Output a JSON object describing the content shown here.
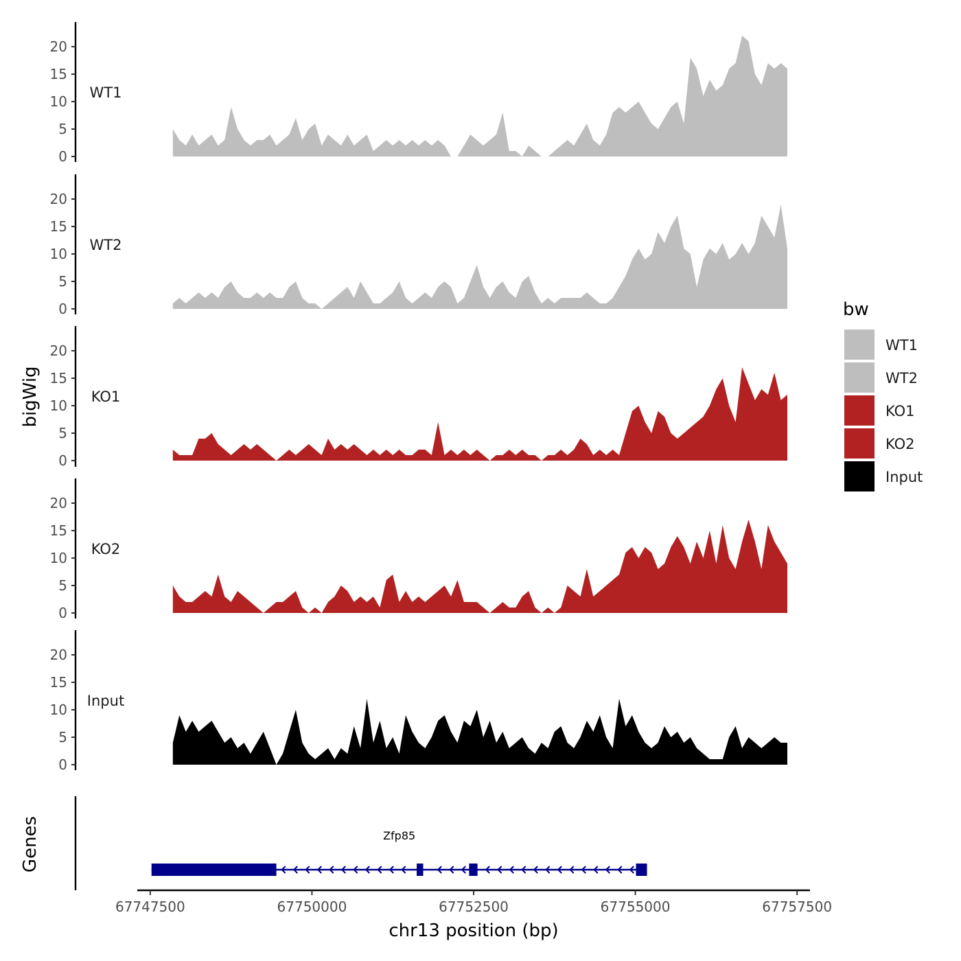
{
  "chart_data": {
    "type": "area",
    "x_label": "chr13 position (bp)",
    "x_range": [
      67747300,
      67757700
    ],
    "x_ticks": [
      67747500,
      67750000,
      67752500,
      67755000,
      67757500
    ],
    "x_tick_labels": [
      "67747500",
      "67750000",
      "67752500",
      "67755000",
      "67757500"
    ],
    "y_label": "bigWig",
    "y_range": [
      0,
      24.5
    ],
    "y_ticks": [
      0,
      5,
      10,
      15,
      20
    ],
    "y_tick_labels": [
      "0",
      "5",
      "10",
      "15",
      "20"
    ],
    "legend": {
      "title": "bw",
      "position": "right",
      "entries": [
        {
          "label": "WT1",
          "color": "#bebebe"
        },
        {
          "label": "WT2",
          "color": "#bebebe"
        },
        {
          "label": "KO1",
          "color": "#b22222"
        },
        {
          "label": "KO2",
          "color": "#b22222"
        },
        {
          "label": "Input",
          "color": "#000000"
        }
      ]
    },
    "series": [
      {
        "name": "WT1",
        "color": "#bebebe",
        "x": [
          67747850,
          67747950,
          67748050,
          67748150,
          67748250,
          67748350,
          67748450,
          67748550,
          67748650,
          67748750,
          67748850,
          67748950,
          67749050,
          67749150,
          67749250,
          67749350,
          67749450,
          67749550,
          67749650,
          67749750,
          67749850,
          67749950,
          67750050,
          67750150,
          67750250,
          67750350,
          67750450,
          67750550,
          67750650,
          67750750,
          67750850,
          67750950,
          67751050,
          67751150,
          67751250,
          67751350,
          67751450,
          67751550,
          67751650,
          67751750,
          67751850,
          67751950,
          67752050,
          67752150,
          67752250,
          67752350,
          67752450,
          67752550,
          67752650,
          67752750,
          67752850,
          67752950,
          67753050,
          67753150,
          67753250,
          67753350,
          67753450,
          67753550,
          67753650,
          67753750,
          67753850,
          67753950,
          67754050,
          67754150,
          67754250,
          67754350,
          67754450,
          67754550,
          67754650,
          67754750,
          67754850,
          67754950,
          67755050,
          67755150,
          67755250,
          67755350,
          67755450,
          67755550,
          67755650,
          67755750,
          67755850,
          67755950,
          67756050,
          67756150,
          67756250,
          67756350,
          67756450,
          67756550,
          67756650,
          67756750,
          67756850,
          67756950,
          67757050,
          67757150,
          67757250,
          67757350
        ],
        "values": [
          5,
          3,
          2,
          4,
          2,
          3,
          4,
          2,
          3,
          9,
          5,
          3,
          2,
          3,
          3,
          4,
          2,
          3,
          4,
          7,
          3,
          5,
          6,
          2,
          4,
          3,
          2,
          4,
          2,
          3,
          4,
          1,
          2,
          3,
          2,
          3,
          2,
          3,
          2,
          3,
          2,
          3,
          2,
          0,
          0,
          2,
          4,
          3,
          2,
          3,
          4,
          8,
          1,
          1,
          0,
          2,
          1,
          0,
          0,
          1,
          2,
          3,
          2,
          4,
          6,
          3,
          2,
          4,
          8,
          9,
          8,
          9,
          10,
          8,
          6,
          5,
          7,
          9,
          10,
          6,
          18,
          16,
          11,
          14,
          12,
          13,
          16,
          17,
          22,
          21,
          15,
          13,
          17,
          16,
          17,
          16
        ]
      },
      {
        "name": "WT2",
        "color": "#bebebe",
        "x": [
          67747850,
          67747950,
          67748050,
          67748150,
          67748250,
          67748350,
          67748450,
          67748550,
          67748650,
          67748750,
          67748850,
          67748950,
          67749050,
          67749150,
          67749250,
          67749350,
          67749450,
          67749550,
          67749650,
          67749750,
          67749850,
          67749950,
          67750050,
          67750150,
          67750250,
          67750350,
          67750450,
          67750550,
          67750650,
          67750750,
          67750850,
          67750950,
          67751050,
          67751150,
          67751250,
          67751350,
          67751450,
          67751550,
          67751650,
          67751750,
          67751850,
          67751950,
          67752050,
          67752150,
          67752250,
          67752350,
          67752450,
          67752550,
          67752650,
          67752750,
          67752850,
          67752950,
          67753050,
          67753150,
          67753250,
          67753350,
          67753450,
          67753550,
          67753650,
          67753750,
          67753850,
          67753950,
          67754050,
          67754150,
          67754250,
          67754350,
          67754450,
          67754550,
          67754650,
          67754750,
          67754850,
          67754950,
          67755050,
          67755150,
          67755250,
          67755350,
          67755450,
          67755550,
          67755650,
          67755750,
          67755850,
          67755950,
          67756050,
          67756150,
          67756250,
          67756350,
          67756450,
          67756550,
          67756650,
          67756750,
          67756850,
          67756950,
          67757050,
          67757150,
          67757250,
          67757350
        ],
        "values": [
          1,
          2,
          1,
          2,
          3,
          2,
          3,
          2,
          4,
          5,
          3,
          2,
          2,
          3,
          2,
          3,
          2,
          2,
          4,
          5,
          2,
          1,
          1,
          0,
          1,
          2,
          3,
          4,
          2,
          5,
          3,
          1,
          1,
          2,
          3,
          5,
          2,
          1,
          2,
          3,
          2,
          4,
          5,
          4,
          1,
          2,
          5,
          8,
          4,
          2,
          4,
          5,
          3,
          2,
          5,
          6,
          3,
          1,
          2,
          1,
          2,
          2,
          2,
          2,
          3,
          2,
          1,
          1,
          2,
          4,
          6,
          9,
          11,
          9,
          10,
          14,
          12,
          15,
          17,
          11,
          10,
          4,
          9,
          11,
          10,
          12,
          9,
          10,
          12,
          10,
          12,
          17,
          15,
          13,
          19,
          11
        ]
      },
      {
        "name": "KO1",
        "color": "#b22222",
        "x": [
          67747850,
          67747950,
          67748050,
          67748150,
          67748250,
          67748350,
          67748450,
          67748550,
          67748650,
          67748750,
          67748850,
          67748950,
          67749050,
          67749150,
          67749250,
          67749350,
          67749450,
          67749550,
          67749650,
          67749750,
          67749850,
          67749950,
          67750050,
          67750150,
          67750250,
          67750350,
          67750450,
          67750550,
          67750650,
          67750750,
          67750850,
          67750950,
          67751050,
          67751150,
          67751250,
          67751350,
          67751450,
          67751550,
          67751650,
          67751750,
          67751850,
          67751950,
          67752050,
          67752150,
          67752250,
          67752350,
          67752450,
          67752550,
          67752650,
          67752750,
          67752850,
          67752950,
          67753050,
          67753150,
          67753250,
          67753350,
          67753450,
          67753550,
          67753650,
          67753750,
          67753850,
          67753950,
          67754050,
          67754150,
          67754250,
          67754350,
          67754450,
          67754550,
          67754650,
          67754750,
          67754850,
          67754950,
          67755050,
          67755150,
          67755250,
          67755350,
          67755450,
          67755550,
          67755650,
          67755750,
          67755850,
          67755950,
          67756050,
          67756150,
          67756250,
          67756350,
          67756450,
          67756550,
          67756650,
          67756750,
          67756850,
          67756950,
          67757050,
          67757150,
          67757250,
          67757350
        ],
        "values": [
          2,
          1,
          1,
          1,
          4,
          4,
          5,
          3,
          2,
          1,
          2,
          3,
          2,
          3,
          2,
          1,
          0,
          1,
          2,
          1,
          2,
          3,
          2,
          1,
          4,
          2,
          3,
          2,
          3,
          2,
          1,
          2,
          1,
          2,
          1,
          2,
          1,
          1,
          2,
          2,
          1,
          7,
          1,
          2,
          1,
          2,
          1,
          2,
          1,
          0,
          1,
          1,
          2,
          1,
          2,
          1,
          1,
          0,
          1,
          1,
          2,
          1,
          2,
          4,
          3,
          1,
          2,
          1,
          2,
          1,
          5,
          9,
          10,
          7,
          5,
          9,
          8,
          5,
          4,
          5,
          6,
          7,
          8,
          10,
          13,
          15,
          10,
          7,
          17,
          14,
          11,
          13,
          12,
          16,
          11,
          12
        ]
      },
      {
        "name": "KO2",
        "color": "#b22222",
        "x": [
          67747850,
          67747950,
          67748050,
          67748150,
          67748250,
          67748350,
          67748450,
          67748550,
          67748650,
          67748750,
          67748850,
          67748950,
          67749050,
          67749150,
          67749250,
          67749350,
          67749450,
          67749550,
          67749650,
          67749750,
          67749850,
          67749950,
          67750050,
          67750150,
          67750250,
          67750350,
          67750450,
          67750550,
          67750650,
          67750750,
          67750850,
          67750950,
          67751050,
          67751150,
          67751250,
          67751350,
          67751450,
          67751550,
          67751650,
          67751750,
          67751850,
          67751950,
          67752050,
          67752150,
          67752250,
          67752350,
          67752450,
          67752550,
          67752650,
          67752750,
          67752850,
          67752950,
          67753050,
          67753150,
          67753250,
          67753350,
          67753450,
          67753550,
          67753650,
          67753750,
          67753850,
          67753950,
          67754050,
          67754150,
          67754250,
          67754350,
          67754450,
          67754550,
          67754650,
          67754750,
          67754850,
          67754950,
          67755050,
          67755150,
          67755250,
          67755350,
          67755450,
          67755550,
          67755650,
          67755750,
          67755850,
          67755950,
          67756050,
          67756150,
          67756250,
          67756350,
          67756450,
          67756550,
          67756650,
          67756750,
          67756850,
          67756950,
          67757050,
          67757150,
          67757250,
          67757350
        ],
        "values": [
          5,
          3,
          2,
          2,
          3,
          4,
          3,
          7,
          3,
          2,
          4,
          3,
          2,
          1,
          0,
          1,
          2,
          2,
          3,
          4,
          1,
          0,
          1,
          0,
          2,
          3,
          5,
          4,
          2,
          3,
          2,
          3,
          1,
          6,
          7,
          2,
          4,
          2,
          3,
          2,
          3,
          4,
          5,
          3,
          6,
          2,
          2,
          2,
          1,
          0,
          1,
          2,
          1,
          1,
          3,
          4,
          1,
          0,
          1,
          0,
          1,
          5,
          4,
          3,
          8,
          3,
          4,
          5,
          6,
          7,
          11,
          12,
          10,
          12,
          11,
          8,
          9,
          12,
          14,
          12,
          9,
          13,
          10,
          15,
          9,
          16,
          10,
          8,
          13,
          17,
          13,
          8,
          16,
          13,
          11,
          9
        ]
      },
      {
        "name": "Input",
        "color": "#000000",
        "x": [
          67747850,
          67747950,
          67748050,
          67748150,
          67748250,
          67748350,
          67748450,
          67748550,
          67748650,
          67748750,
          67748850,
          67748950,
          67749050,
          67749150,
          67749250,
          67749350,
          67749450,
          67749550,
          67749650,
          67749750,
          67749850,
          67749950,
          67750050,
          67750150,
          67750250,
          67750350,
          67750450,
          67750550,
          67750650,
          67750750,
          67750850,
          67750950,
          67751050,
          67751150,
          67751250,
          67751350,
          67751450,
          67751550,
          67751650,
          67751750,
          67751850,
          67751950,
          67752050,
          67752150,
          67752250,
          67752350,
          67752450,
          67752550,
          67752650,
          67752750,
          67752850,
          67752950,
          67753050,
          67753150,
          67753250,
          67753350,
          67753450,
          67753550,
          67753650,
          67753750,
          67753850,
          67753950,
          67754050,
          67754150,
          67754250,
          67754350,
          67754450,
          67754550,
          67754650,
          67754750,
          67754850,
          67754950,
          67755050,
          67755150,
          67755250,
          67755350,
          67755450,
          67755550,
          67755650,
          67755750,
          67755850,
          67755950,
          67756050,
          67756150,
          67756250,
          67756350,
          67756450,
          67756550,
          67756650,
          67756750,
          67756850,
          67756950,
          67757050,
          67757150,
          67757250,
          67757350
        ],
        "values": [
          4,
          9,
          6,
          8,
          6,
          7,
          8,
          6,
          4,
          5,
          3,
          4,
          2,
          4,
          6,
          3,
          0,
          2,
          6,
          10,
          4,
          2,
          1,
          2,
          3,
          1,
          3,
          2,
          7,
          3,
          12,
          4,
          8,
          3,
          5,
          2,
          9,
          6,
          4,
          3,
          5,
          8,
          9,
          6,
          4,
          8,
          7,
          10,
          5,
          8,
          4,
          6,
          3,
          4,
          5,
          3,
          2,
          4,
          3,
          6,
          7,
          4,
          3,
          5,
          8,
          6,
          9,
          5,
          3,
          12,
          7,
          9,
          6,
          4,
          3,
          4,
          7,
          5,
          6,
          4,
          5,
          3,
          2,
          1,
          1,
          1,
          5,
          7,
          3,
          5,
          4,
          3,
          4,
          5,
          4,
          4
        ]
      }
    ],
    "genes": [
      {
        "name": "Zfp85",
        "strand": "-",
        "start": 67747520,
        "end": 67755180,
        "exons": [
          [
            67747520,
            67749450
          ],
          [
            67751620,
            67751720
          ],
          [
            67752430,
            67752560
          ],
          [
            67755010,
            67755180
          ]
        ]
      }
    ],
    "genes_panel_label": "Genes"
  }
}
